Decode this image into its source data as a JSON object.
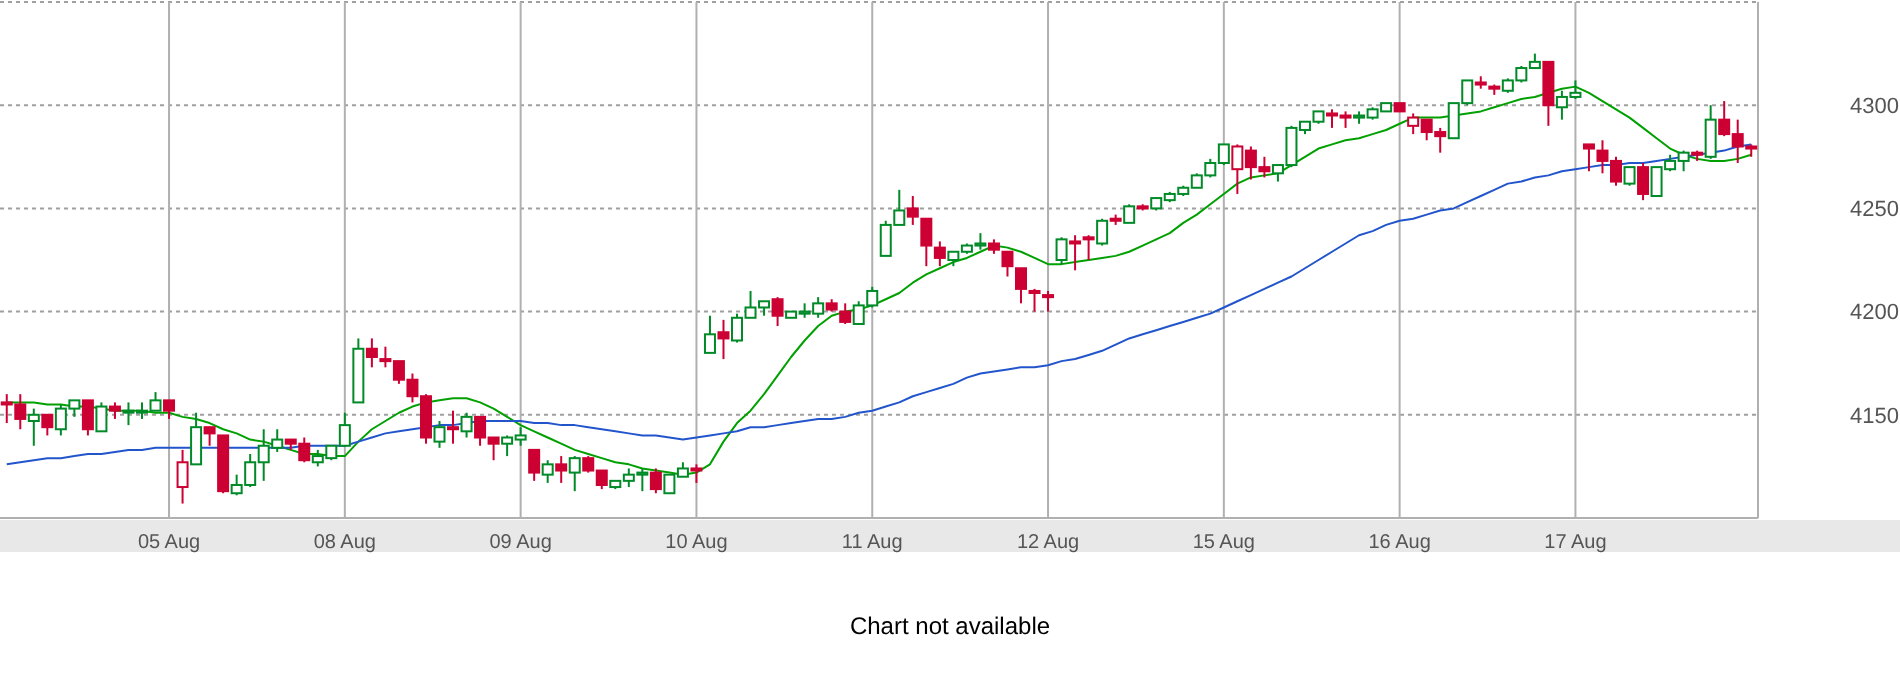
{
  "chart_data": {
    "type": "candlestick",
    "categories": [
      null,
      null,
      null,
      null,
      null,
      null,
      null,
      null,
      null,
      null,
      null,
      null,
      "05 Aug",
      null,
      null,
      null,
      null,
      null,
      null,
      null,
      null,
      null,
      null,
      null,
      null,
      "08 Aug",
      null,
      null,
      null,
      null,
      null,
      null,
      null,
      null,
      null,
      null,
      null,
      null,
      "09 Aug",
      null,
      null,
      null,
      null,
      null,
      null,
      null,
      null,
      null,
      null,
      null,
      null,
      "10 Aug",
      null,
      null,
      null,
      null,
      null,
      null,
      null,
      null,
      null,
      null,
      null,
      null,
      "11 Aug",
      null,
      null,
      null,
      null,
      null,
      null,
      null,
      null,
      null,
      null,
      null,
      null,
      "12 Aug",
      null,
      null,
      null,
      null,
      null,
      null,
      null,
      null,
      null,
      null,
      null,
      null,
      "15 Aug",
      null,
      null,
      null,
      null,
      null,
      null,
      null,
      null,
      null,
      null,
      null,
      null,
      "16 Aug",
      null,
      null,
      null,
      null,
      null,
      null,
      null,
      null,
      null,
      null,
      null,
      null,
      "17 Aug",
      null,
      null,
      null,
      null,
      null,
      null,
      null,
      null,
      null,
      null,
      null,
      null,
      null
    ],
    "colors": [
      "#cc0033",
      "#cc0033",
      "#008a28",
      "#cc0033",
      "#008a28",
      "#008a28",
      "#cc0033",
      "#008a28",
      "#cc0033",
      "#008a28",
      "#008a28",
      "#008a28",
      "#cc0033",
      "#cc0033",
      "#008a28",
      "#cc0033",
      "#cc0033",
      "#008a28",
      "#008a28",
      "#008a28",
      "#008a28",
      "#cc0033",
      "#cc0033",
      "#008a28",
      "#008a28",
      "#008a28",
      "#008a28",
      "#cc0033",
      "#cc0033",
      "#cc0033",
      "#cc0033",
      "#cc0033",
      "#008a28",
      "#cc0033",
      "#008a28",
      "#cc0033",
      "#cc0033",
      "#008a28",
      "#008a28",
      "#cc0033",
      "#008a28",
      "#cc0033",
      "#008a28",
      "#cc0033",
      "#cc0033",
      "#008a28",
      "#008a28",
      "#008a28",
      "#cc0033",
      "#008a28",
      "#008a28",
      "#cc0033",
      "#008a28",
      "#cc0033",
      "#008a28",
      "#008a28",
      "#008a28",
      "#cc0033",
      "#008a28",
      "#008a28",
      "#008a28",
      "#cc0033",
      "#cc0033",
      "#008a28",
      "#008a28",
      "#008a28",
      "#008a28",
      "#cc0033",
      "#cc0033",
      "#cc0033",
      "#008a28",
      "#008a28",
      "#008a28",
      "#cc0033",
      "#cc0033",
      "#cc0033",
      "#cc0033",
      "#cc0033",
      "#008a28",
      "#cc0033",
      "#cc0033",
      "#008a28",
      "#cc0033",
      "#008a28",
      "#cc0033",
      "#008a28",
      "#008a28",
      "#008a28",
      "#008a28",
      "#008a28",
      "#008a28",
      "#cc0033",
      "#cc0033",
      "#cc0033",
      "#008a28",
      "#008a28",
      "#008a28",
      "#008a28",
      "#cc0033",
      "#cc0033",
      "#008a28",
      "#008a28",
      "#008a28",
      "#cc0033",
      "#cc0033",
      "#cc0033",
      "#cc0033",
      "#008a28",
      "#008a28",
      "#cc0033",
      "#cc0033",
      "#008a28",
      "#008a28",
      "#008a28",
      "#cc0033",
      "#008a28",
      "#008a28",
      "#cc0033",
      "#cc0033",
      "#cc0033",
      "#008a28",
      "#cc0033",
      "#008a28",
      "#008a28",
      "#008a28",
      "#cc0033",
      "#008a28",
      "#cc0033",
      "#cc0033",
      "#cc0033"
    ],
    "ohlc": [
      [
        4156,
        4160,
        4146,
        4155
      ],
      [
        4155,
        4160,
        4143,
        4148
      ],
      [
        4147,
        4153,
        4135,
        4150
      ],
      [
        4150,
        4150,
        4140,
        4144
      ],
      [
        4143,
        4155,
        4140,
        4153
      ],
      [
        4153,
        4157,
        4149,
        4157
      ],
      [
        4157,
        4157,
        4140,
        4143
      ],
      [
        4142,
        4156,
        4142,
        4154
      ],
      [
        4154,
        4156,
        4148,
        4152
      ],
      [
        4152,
        4156,
        4145,
        4152
      ],
      [
        4152,
        4156,
        4148,
        4152
      ],
      [
        4152,
        4161,
        4152,
        4157
      ],
      [
        4157,
        4157,
        4148,
        4152
      ],
      [
        4115,
        4133,
        4107,
        4127
      ],
      [
        4126,
        4151,
        4126,
        4144
      ],
      [
        4144,
        4144,
        4135,
        4141
      ],
      [
        4140,
        4140,
        4112,
        4113
      ],
      [
        4112,
        4121,
        4111,
        4116
      ],
      [
        4116,
        4131,
        4115,
        4127
      ],
      [
        4127,
        4143,
        4118,
        4135
      ],
      [
        4134,
        4143,
        4132,
        4138
      ],
      [
        4138,
        4138,
        4133,
        4136
      ],
      [
        4136,
        4139,
        4127,
        4128
      ],
      [
        4127,
        4133,
        4125,
        4130
      ],
      [
        4129,
        4135,
        4128,
        4135
      ],
      [
        4135,
        4151,
        4135,
        4145
      ],
      [
        4156,
        4187,
        4156,
        4182
      ],
      [
        4182,
        4187,
        4173,
        4178
      ],
      [
        4177,
        4183,
        4173,
        4176
      ],
      [
        4176,
        4176,
        4165,
        4167
      ],
      [
        4167,
        4170,
        4156,
        4159
      ],
      [
        4159,
        4160,
        4136,
        4139
      ],
      [
        4137,
        4147,
        4134,
        4144
      ],
      [
        4144,
        4152,
        4136,
        4143
      ],
      [
        4142,
        4151,
        4139,
        4149
      ],
      [
        4149,
        4149,
        4135,
        4139
      ],
      [
        4139,
        4139,
        4128,
        4136
      ],
      [
        4136,
        4140,
        4130,
        4139
      ],
      [
        4138,
        4144,
        4135,
        4140
      ],
      [
        4133,
        4133,
        4118,
        4122
      ],
      [
        4121,
        4128,
        4117,
        4126
      ],
      [
        4126,
        4130,
        4117,
        4123
      ],
      [
        4122,
        4130,
        4113,
        4129
      ],
      [
        4129,
        4130,
        4122,
        4123
      ],
      [
        4123,
        4123,
        4114,
        4116
      ],
      [
        4115,
        4118,
        4114,
        4118
      ],
      [
        4118,
        4124,
        4115,
        4121
      ],
      [
        4121,
        4124,
        4113,
        4122
      ],
      [
        4122,
        4124,
        4112,
        4114
      ],
      [
        4112,
        4121,
        4112,
        4121
      ],
      [
        4120,
        4127,
        4120,
        4124
      ],
      [
        4124,
        4126,
        4117,
        4123
      ],
      [
        4180,
        4198,
        4180,
        4189
      ],
      [
        4190,
        4196,
        4177,
        4187
      ],
      [
        4186,
        4199,
        4185,
        4197
      ],
      [
        4197,
        4210,
        4197,
        4202
      ],
      [
        4202,
        4205,
        4198,
        4205
      ],
      [
        4206,
        4207,
        4193,
        4198
      ],
      [
        4197,
        4200,
        4197,
        4200
      ],
      [
        4199,
        4204,
        4197,
        4200
      ],
      [
        4199,
        4207,
        4197,
        4204
      ],
      [
        4204,
        4206,
        4200,
        4201
      ],
      [
        4200,
        4204,
        4194,
        4195
      ],
      [
        4194,
        4205,
        4194,
        4203
      ],
      [
        4203,
        4212,
        4202,
        4210
      ],
      [
        4227,
        4244,
        4227,
        4242
      ],
      [
        4242,
        4259,
        4242,
        4249
      ],
      [
        4250,
        4256,
        4242,
        4246
      ],
      [
        4245,
        4245,
        4222,
        4232
      ],
      [
        4231,
        4234,
        4222,
        4226
      ],
      [
        4225,
        4229,
        4222,
        4229
      ],
      [
        4229,
        4233,
        4228,
        4232
      ],
      [
        4232,
        4238,
        4230,
        4233
      ],
      [
        4233,
        4235,
        4228,
        4230
      ],
      [
        4229,
        4229,
        4217,
        4222
      ],
      [
        4221,
        4221,
        4204,
        4211
      ],
      [
        4210,
        4211,
        4200,
        4209
      ],
      [
        4208,
        4210,
        4200,
        4207
      ],
      [
        4225,
        4236,
        4223,
        4235
      ],
      [
        4234,
        4237,
        4220,
        4233
      ],
      [
        4236,
        4237,
        4225,
        4235
      ],
      [
        4233,
        4245,
        4232,
        4244
      ],
      [
        4245,
        4247,
        4242,
        4244
      ],
      [
        4243,
        4252,
        4243,
        4251
      ],
      [
        4251,
        4252,
        4249,
        4250
      ],
      [
        4250,
        4255,
        4249,
        4255
      ],
      [
        4254,
        4258,
        4253,
        4257
      ],
      [
        4257,
        4261,
        4256,
        4260
      ],
      [
        4260,
        4267,
        4260,
        4266
      ],
      [
        4266,
        4274,
        4265,
        4272
      ],
      [
        4272,
        4281,
        4271,
        4281
      ],
      [
        4269,
        4281,
        4257,
        4280
      ],
      [
        4278,
        4280,
        4264,
        4270
      ],
      [
        4270,
        4275,
        4265,
        4268
      ],
      [
        4267,
        4271,
        4263,
        4271
      ],
      [
        4271,
        4290,
        4270,
        4289
      ],
      [
        4288,
        4292,
        4286,
        4292
      ],
      [
        4292,
        4297,
        4291,
        4297
      ],
      [
        4296,
        4298,
        4289,
        4295
      ],
      [
        4295,
        4297,
        4289,
        4294
      ],
      [
        4294,
        4297,
        4291,
        4295
      ],
      [
        4294,
        4299,
        4293,
        4298
      ],
      [
        4297,
        4301,
        4297,
        4301
      ],
      [
        4301,
        4301,
        4297,
        4297
      ],
      [
        4290,
        4296,
        4286,
        4294
      ],
      [
        4293,
        4293,
        4283,
        4287
      ],
      [
        4287,
        4289,
        4277,
        4285
      ],
      [
        4284,
        4301,
        4284,
        4301
      ],
      [
        4301,
        4312,
        4300,
        4312
      ],
      [
        4311,
        4314,
        4308,
        4310
      ],
      [
        4309,
        4310,
        4305,
        4308
      ],
      [
        4307,
        4313,
        4306,
        4312
      ],
      [
        4312,
        4319,
        4311,
        4318
      ],
      [
        4318,
        4325,
        4318,
        4321
      ],
      [
        4321,
        4321,
        4290,
        4300
      ],
      [
        4299,
        4307,
        4293,
        4304
      ],
      [
        4304,
        4312,
        4303,
        4306
      ],
      [
        4281,
        4281,
        4268,
        4279
      ],
      [
        4278,
        4283,
        4267,
        4273
      ],
      [
        4273,
        4275,
        4261,
        4263
      ],
      [
        4262,
        4270,
        4261,
        4270
      ],
      [
        4270,
        4272,
        4254,
        4257
      ],
      [
        4256,
        4270,
        4256,
        4270
      ],
      [
        4269,
        4276,
        4268,
        4273
      ],
      [
        4273,
        4278,
        4268,
        4277
      ],
      [
        4277,
        4278,
        4273,
        4276
      ],
      [
        4275,
        4300,
        4274,
        4293
      ],
      [
        4293,
        4302,
        4285,
        4286
      ],
      [
        4286,
        4293,
        4272,
        4280
      ],
      [
        4280,
        4281,
        4275,
        4279
      ]
    ],
    "series": [
      {
        "type": "line",
        "color": "#00a000",
        "values": [
          4156,
          4156,
          4156,
          4155,
          4155,
          4154,
          4154,
          4153,
          4152,
          4152,
          4152,
          4151,
          4151,
          4149,
          4148,
          4146,
          4143,
          4141,
          4138,
          4137,
          4135,
          4133,
          4131,
          4131,
          4130,
          4130,
          4137,
          4143,
          4147,
          4151,
          4154,
          4156,
          4157,
          4158,
          4158,
          4156,
          4153,
          4149,
          4145,
          4142,
          4139,
          4136,
          4133,
          4131,
          4129,
          4127,
          4126,
          4124,
          4123,
          4122,
          4121,
          4122,
          4126,
          4137,
          4146,
          4152,
          4160,
          4169,
          4178,
          4186,
          4193,
          4198,
          4200,
          4201,
          4203,
          4206,
          4209,
          4214,
          4218,
          4221,
          4224,
          4226,
          4229,
          4232,
          4231,
          4229,
          4226,
          4223,
          4223,
          4224,
          4225,
          4226,
          4227,
          4229,
          4232,
          4235,
          4238,
          4243,
          4247,
          4252,
          4257,
          4262,
          4265,
          4266,
          4267,
          4271,
          4275,
          4279,
          4281,
          4283,
          4284,
          4286,
          4288,
          4291,
          4294,
          4294,
          4294,
          4295,
          4296,
          4297,
          4299,
          4301,
          4303,
          4304,
          4306,
          4308,
          4309,
          4306,
          4302,
          4298,
          4294,
          4289,
          4284,
          4279,
          4276,
          4274,
          4273,
          4273,
          4274,
          4276
        ]
      },
      {
        "type": "line",
        "color": "#2255cc",
        "values": [
          4126,
          4127,
          4128,
          4129,
          4129,
          4130,
          4131,
          4131,
          4132,
          4133,
          4133,
          4134,
          4134,
          4134,
          4134,
          4134,
          4134,
          4134,
          4134,
          4134,
          4134,
          4134,
          4135,
          4135,
          4135,
          4135,
          4137,
          4139,
          4141,
          4142,
          4143,
          4144,
          4145,
          4145,
          4146,
          4147,
          4147,
          4147,
          4147,
          4146,
          4146,
          4145,
          4145,
          4144,
          4143,
          4142,
          4141,
          4140,
          4140,
          4139,
          4138,
          4139,
          4140,
          4141,
          4142,
          4144,
          4144,
          4145,
          4146,
          4147,
          4148,
          4148,
          4149,
          4151,
          4152,
          4154,
          4156,
          4159,
          4161,
          4163,
          4165,
          4168,
          4170,
          4171,
          4172,
          4173,
          4173,
          4174,
          4176,
          4177,
          4179,
          4181,
          4184,
          4187,
          4189,
          4191,
          4193,
          4195,
          4197,
          4199,
          4202,
          4205,
          4208,
          4211,
          4214,
          4217,
          4221,
          4225,
          4229,
          4233,
          4237,
          4239,
          4242,
          4244,
          4245,
          4247,
          4249,
          4250,
          4253,
          4256,
          4259,
          4262,
          4263,
          4265,
          4266,
          4268,
          4269,
          4270,
          4271,
          4271,
          4272,
          4272,
          4273,
          4274,
          4275,
          4276,
          4277,
          4278,
          4280,
          4281
        ]
      }
    ],
    "ylim": [
      4100,
      4350
    ],
    "yticks": [
      4150,
      4200,
      4250,
      4300
    ],
    "grid": true,
    "line_style": "solid",
    "marker": "none",
    "annotations": [
      "Chart not available"
    ]
  }
}
